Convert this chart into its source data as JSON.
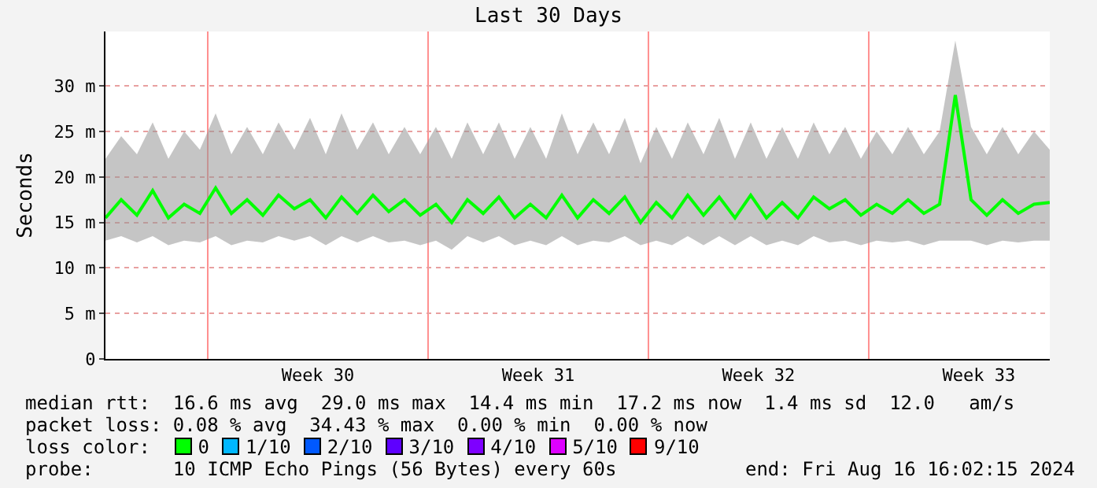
{
  "chart_data": {
    "type": "line",
    "title": "Last 30 Days",
    "ylabel": "Seconds",
    "x": [
      "2024-07-17T16:00",
      "2024-07-18T04:00",
      "2024-07-18T16:00",
      "2024-07-19T04:00",
      "2024-07-19T16:00",
      "2024-07-20T04:00",
      "2024-07-20T16:00",
      "2024-07-21T04:00",
      "2024-07-21T16:00",
      "2024-07-22T04:00",
      "2024-07-22T16:00",
      "2024-07-23T04:00",
      "2024-07-23T16:00",
      "2024-07-24T04:00",
      "2024-07-24T16:00",
      "2024-07-25T04:00",
      "2024-07-25T16:00",
      "2024-07-26T04:00",
      "2024-07-26T16:00",
      "2024-07-27T04:00",
      "2024-07-27T16:00",
      "2024-07-28T04:00",
      "2024-07-28T16:00",
      "2024-07-29T04:00",
      "2024-07-29T16:00",
      "2024-07-30T04:00",
      "2024-07-30T16:00",
      "2024-07-31T04:00",
      "2024-07-31T16:00",
      "2024-08-01T04:00",
      "2024-08-01T16:00",
      "2024-08-02T04:00",
      "2024-08-02T16:00",
      "2024-08-03T04:00",
      "2024-08-03T16:00",
      "2024-08-04T04:00",
      "2024-08-04T16:00",
      "2024-08-05T04:00",
      "2024-08-05T16:00",
      "2024-08-06T04:00",
      "2024-08-06T16:00",
      "2024-08-07T04:00",
      "2024-08-07T16:00",
      "2024-08-08T04:00",
      "2024-08-08T16:00",
      "2024-08-09T04:00",
      "2024-08-09T16:00",
      "2024-08-10T04:00",
      "2024-08-10T16:00",
      "2024-08-11T04:00",
      "2024-08-11T16:00",
      "2024-08-12T04:00",
      "2024-08-12T16:00",
      "2024-08-13T04:00",
      "2024-08-13T16:00",
      "2024-08-14T04:00",
      "2024-08-14T16:00",
      "2024-08-15T04:00",
      "2024-08-15T16:00",
      "2024-08-16T04:00",
      "2024-08-16T16:00"
    ],
    "series": [
      {
        "color": "#00ff00",
        "values": [
          15.5,
          17.5,
          15.8,
          18.5,
          15.5,
          17.0,
          16.0,
          18.8,
          16.0,
          17.5,
          15.8,
          18.0,
          16.5,
          17.5,
          15.5,
          17.8,
          16.0,
          18.0,
          16.2,
          17.5,
          15.8,
          17.0,
          15.0,
          17.5,
          16.0,
          17.8,
          15.5,
          17.0,
          15.5,
          18.0,
          15.5,
          17.5,
          16.0,
          17.8,
          15.0,
          17.2,
          15.5,
          18.0,
          15.8,
          17.8,
          15.5,
          18.0,
          15.5,
          17.2,
          15.5,
          17.8,
          16.5,
          17.5,
          15.8,
          17.0,
          16.0,
          17.5,
          16.0,
          17.0,
          29.0,
          17.5,
          15.8,
          17.5,
          16.0,
          17.0,
          17.2
        ],
        "lower": [
          13.0,
          13.5,
          12.8,
          13.5,
          12.5,
          13.0,
          12.8,
          13.5,
          12.5,
          13.0,
          12.8,
          13.5,
          13.0,
          13.5,
          12.5,
          13.5,
          12.8,
          13.5,
          12.8,
          13.0,
          12.5,
          13.0,
          12.0,
          13.5,
          12.8,
          13.5,
          12.5,
          13.0,
          12.5,
          13.5,
          12.5,
          13.0,
          12.8,
          13.5,
          12.5,
          13.0,
          12.5,
          13.5,
          12.5,
          13.5,
          12.5,
          13.5,
          12.5,
          13.0,
          12.5,
          13.5,
          12.8,
          13.0,
          12.5,
          13.0,
          12.8,
          13.0,
          12.5,
          13.0,
          13.0,
          13.0,
          12.5,
          13.0,
          12.8,
          13.0,
          13.0
        ],
        "upper": [
          22.0,
          24.5,
          22.5,
          26.0,
          22.0,
          25.0,
          23.0,
          27.0,
          22.5,
          25.5,
          22.5,
          26.0,
          23.0,
          26.5,
          22.5,
          27.0,
          23.0,
          26.0,
          22.5,
          25.5,
          22.5,
          25.5,
          22.0,
          26.0,
          22.5,
          26.0,
          22.0,
          25.5,
          22.0,
          27.0,
          22.5,
          26.0,
          22.5,
          26.5,
          21.5,
          25.5,
          22.0,
          26.0,
          22.5,
          26.5,
          22.0,
          26.0,
          22.0,
          25.5,
          22.0,
          26.0,
          22.5,
          25.5,
          22.0,
          25.0,
          22.5,
          25.5,
          22.5,
          25.0,
          35.0,
          25.5,
          22.5,
          25.5,
          22.5,
          25.0,
          23.0
        ]
      }
    ],
    "xlim": [
      "2024-07-17T16:00",
      "2024-08-16T16:02"
    ],
    "xticks": [
      {
        "value": "2024-07-24T10:00",
        "label": "Week 30"
      },
      {
        "value": "2024-07-31T10:00",
        "label": "Week 31"
      },
      {
        "value": "2024-08-07T10:00",
        "label": "Week 32"
      },
      {
        "value": "2024-08-14T10:00",
        "label": "Week 33"
      }
    ],
    "ylim": [
      0,
      36
    ],
    "yticks": [
      {
        "value": 0,
        "label": "0"
      },
      {
        "value": 5,
        "label": "5 m"
      },
      {
        "value": 10,
        "label": "10 m"
      },
      {
        "value": 15,
        "label": "15 m"
      },
      {
        "value": 20,
        "label": "20 m"
      },
      {
        "value": 25,
        "label": "25 m"
      },
      {
        "value": 30,
        "label": "30 m"
      }
    ],
    "grid": "y",
    "marker": "none",
    "line_style": "solid",
    "ref_lines": [
      {
        "axis": "x",
        "value": "2024-07-20T22:00",
        "color": "#ff9090"
      },
      {
        "axis": "x",
        "value": "2024-07-27T22:00",
        "color": "#ff9090"
      },
      {
        "axis": "x",
        "value": "2024-08-03T22:00",
        "color": "#ff9090"
      },
      {
        "axis": "x",
        "value": "2024-08-10T22:00",
        "color": "#ff9090"
      }
    ],
    "annotations": [
      "median rtt:  16.6 ms avg  29.0 ms max  14.4 ms min  17.2 ms now  1.4 ms sd  12.0   am/s",
      "packet loss: 0.08 % avg  34.43 % max  0.00 % min  0.00 % now",
      "loss color:  0  1/10  2/10  3/10  4/10  5/10  9/10",
      "probe:       10 ICMP Echo Pings (56 Bytes) every 60s",
      "end: Fri Aug 16 16:02:15 2024"
    ]
  }
}
